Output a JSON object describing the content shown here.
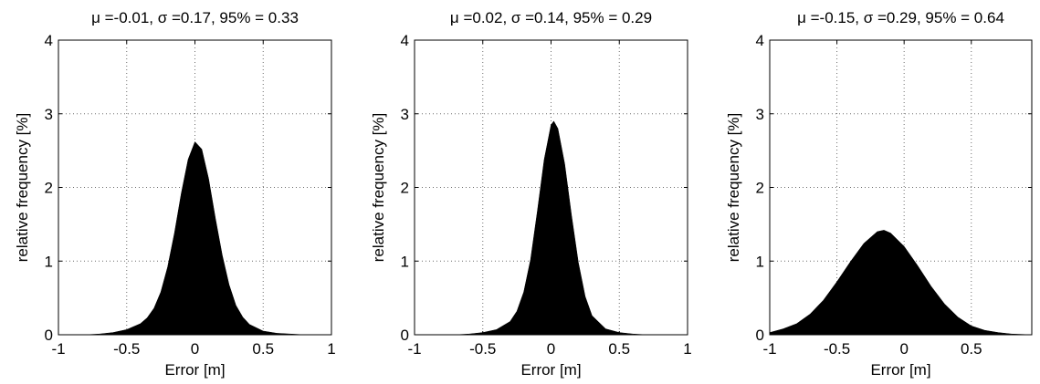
{
  "chart_data": [
    {
      "type": "area",
      "subtype": "histogram",
      "title": "μ =-0.01, σ =0.17, 95% = 0.33",
      "xlabel": "Error [m]",
      "ylabel": "relative frequency [%]",
      "xlim": [
        -1,
        1
      ],
      "ylim": [
        0,
        4
      ],
      "xticks": [
        -1,
        -0.5,
        0,
        0.5,
        1
      ],
      "xtick_labels": [
        "-1",
        "-0.5",
        "0",
        "0.5",
        "1"
      ],
      "yticks": [
        0,
        1,
        2,
        3,
        4
      ],
      "ytick_labels": [
        "0",
        "1",
        "2",
        "3",
        "4"
      ],
      "grid": true,
      "x": [
        -1.0,
        -0.8,
        -0.7,
        -0.6,
        -0.5,
        -0.4,
        -0.35,
        -0.3,
        -0.25,
        -0.2,
        -0.15,
        -0.1,
        -0.05,
        0.0,
        0.05,
        0.1,
        0.15,
        0.2,
        0.25,
        0.3,
        0.35,
        0.4,
        0.5,
        0.6,
        0.7,
        0.8,
        1.0
      ],
      "y": [
        0.0,
        0.0,
        0.01,
        0.03,
        0.07,
        0.15,
        0.23,
        0.36,
        0.58,
        0.92,
        1.38,
        1.92,
        2.38,
        2.62,
        2.52,
        2.12,
        1.58,
        1.08,
        0.68,
        0.4,
        0.24,
        0.14,
        0.05,
        0.02,
        0.01,
        0.0,
        0.0
      ]
    },
    {
      "type": "area",
      "subtype": "histogram",
      "title": "μ =0.02, σ =0.14, 95% = 0.29",
      "xlabel": "Error [m]",
      "ylabel": "relative frequency [%]",
      "xlim": [
        -1,
        1
      ],
      "ylim": [
        0,
        4
      ],
      "xticks": [
        -1,
        -0.5,
        0,
        0.5,
        1
      ],
      "xtick_labels": [
        "-1",
        "-0.5",
        "0",
        "0.5",
        "1"
      ],
      "yticks": [
        0,
        1,
        2,
        3,
        4
      ],
      "ytick_labels": [
        "0",
        "1",
        "2",
        "3",
        "4"
      ],
      "grid": true,
      "x": [
        -1.0,
        -0.7,
        -0.6,
        -0.5,
        -0.4,
        -0.3,
        -0.25,
        -0.2,
        -0.15,
        -0.1,
        -0.05,
        0.0,
        0.02,
        0.05,
        0.1,
        0.15,
        0.2,
        0.25,
        0.3,
        0.4,
        0.5,
        0.6,
        0.7,
        1.0
      ],
      "y": [
        0.0,
        0.0,
        0.01,
        0.03,
        0.07,
        0.18,
        0.32,
        0.58,
        1.02,
        1.68,
        2.38,
        2.85,
        2.9,
        2.8,
        2.32,
        1.62,
        0.98,
        0.52,
        0.26,
        0.08,
        0.03,
        0.01,
        0.0,
        0.0
      ]
    },
    {
      "type": "area",
      "subtype": "histogram",
      "title": "μ =-0.15, σ =0.29, 95% = 0.64",
      "xlabel": "Error [m]",
      "ylabel": "relative frequency [%]",
      "xlim": [
        -1,
        0.95
      ],
      "ylim": [
        0,
        4
      ],
      "xticks": [
        -1,
        -0.5,
        0,
        0.5
      ],
      "xtick_labels": [
        "-1",
        "-0.5",
        "0",
        "0.5"
      ],
      "yticks": [
        0,
        1,
        2,
        3,
        4
      ],
      "ytick_labels": [
        "0",
        "1",
        "2",
        "3",
        "4"
      ],
      "grid": true,
      "x": [
        -1.0,
        -0.9,
        -0.8,
        -0.7,
        -0.6,
        -0.5,
        -0.4,
        -0.3,
        -0.2,
        -0.15,
        -0.1,
        0.0,
        0.1,
        0.2,
        0.3,
        0.4,
        0.5,
        0.6,
        0.7,
        0.8,
        0.95
      ],
      "y": [
        0.03,
        0.08,
        0.15,
        0.28,
        0.47,
        0.72,
        0.99,
        1.24,
        1.4,
        1.42,
        1.38,
        1.2,
        0.94,
        0.66,
        0.42,
        0.24,
        0.12,
        0.06,
        0.03,
        0.01,
        0.0
      ]
    }
  ]
}
